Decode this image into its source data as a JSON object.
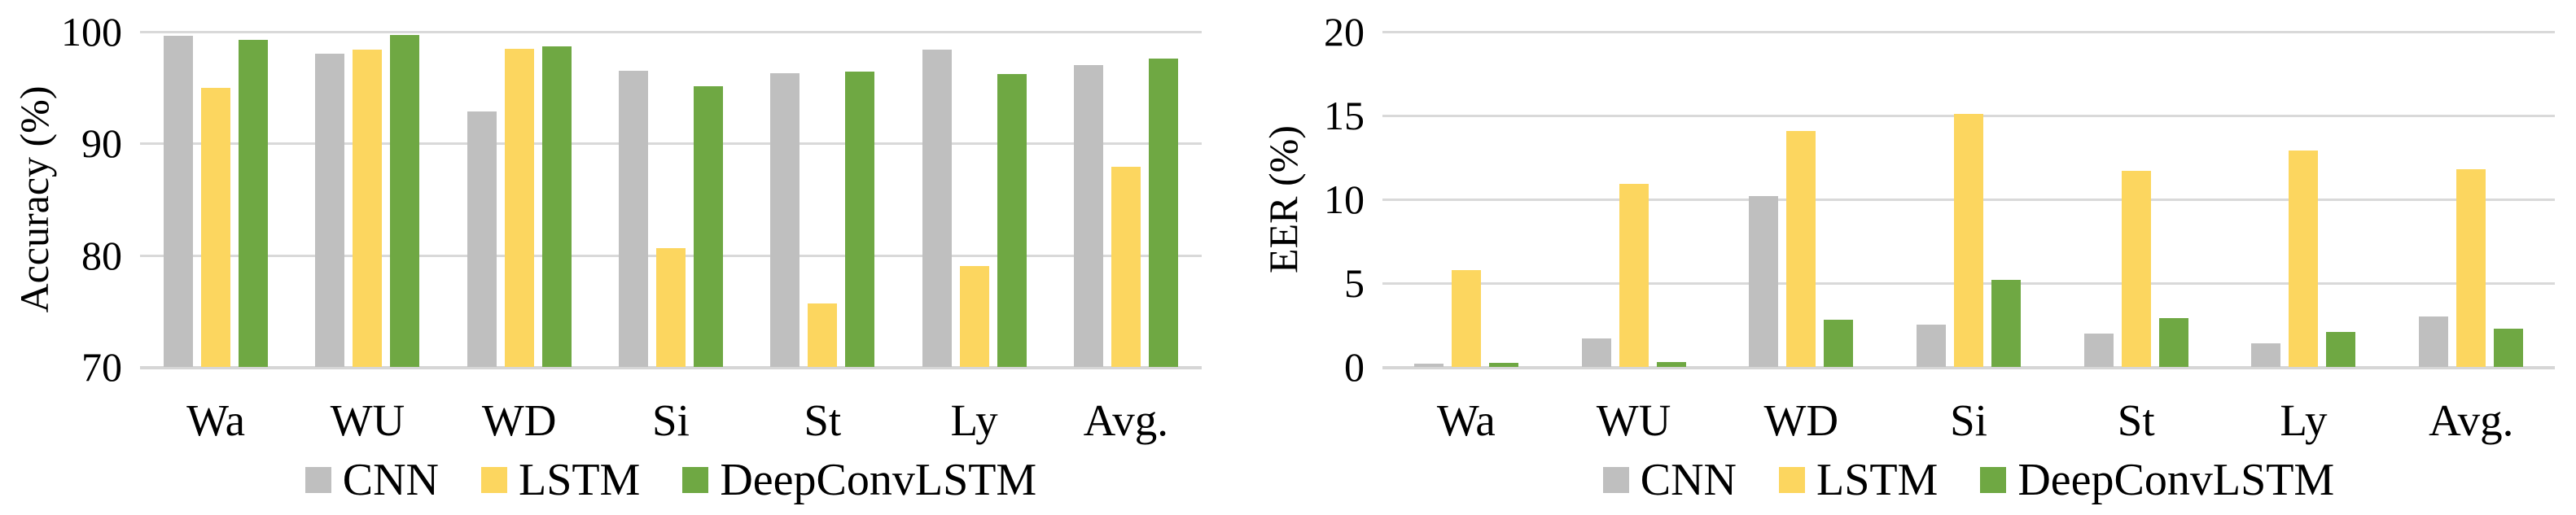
{
  "figure": {
    "background": "#FFFFFF",
    "grid_color": "#D9D9D9",
    "axis_line_color": "#D6D6D6",
    "text_color": "#000000"
  },
  "chart_data": [
    {
      "type": "bar",
      "title": "",
      "xlabel": "",
      "ylabel": "Accuracy (%)",
      "ylim": [
        70,
        100
      ],
      "yticks": [
        100,
        90,
        80,
        70
      ],
      "grid": true,
      "legend_position": "bottom",
      "categories": [
        "Wa",
        "WU",
        "WD",
        "Si",
        "St",
        "Ly",
        "Avg."
      ],
      "series": [
        {
          "name": "CNN",
          "color": "#BFBFBF",
          "values": [
            99.6,
            98.0,
            92.9,
            96.5,
            96.3,
            98.4,
            97.0
          ]
        },
        {
          "name": "LSTM",
          "color": "#FCD65F",
          "values": [
            95.0,
            98.4,
            98.5,
            80.6,
            75.7,
            79.0,
            87.9
          ]
        },
        {
          "name": "DeepConvLSTM",
          "color": "#6FA843",
          "values": [
            99.3,
            99.7,
            98.7,
            95.1,
            96.4,
            96.2,
            97.6
          ]
        }
      ]
    },
    {
      "type": "bar",
      "title": "",
      "xlabel": "",
      "ylabel": "EER (%)",
      "ylim": [
        0,
        20
      ],
      "yticks": [
        20,
        15,
        10,
        5,
        0
      ],
      "grid": true,
      "legend_position": "bottom",
      "categories": [
        "Wa",
        "WU",
        "WD",
        "Si",
        "St",
        "Ly",
        "Avg."
      ],
      "series": [
        {
          "name": "CNN",
          "color": "#BFBFBF",
          "values": [
            0.2,
            1.7,
            10.2,
            2.5,
            2.0,
            1.4,
            3.0
          ]
        },
        {
          "name": "LSTM",
          "color": "#FCD65F",
          "values": [
            5.8,
            10.9,
            14.1,
            15.1,
            11.7,
            12.9,
            11.8
          ]
        },
        {
          "name": "DeepConvLSTM",
          "color": "#6FA843",
          "values": [
            0.25,
            0.3,
            2.8,
            5.2,
            2.9,
            2.1,
            2.3
          ]
        }
      ]
    }
  ]
}
